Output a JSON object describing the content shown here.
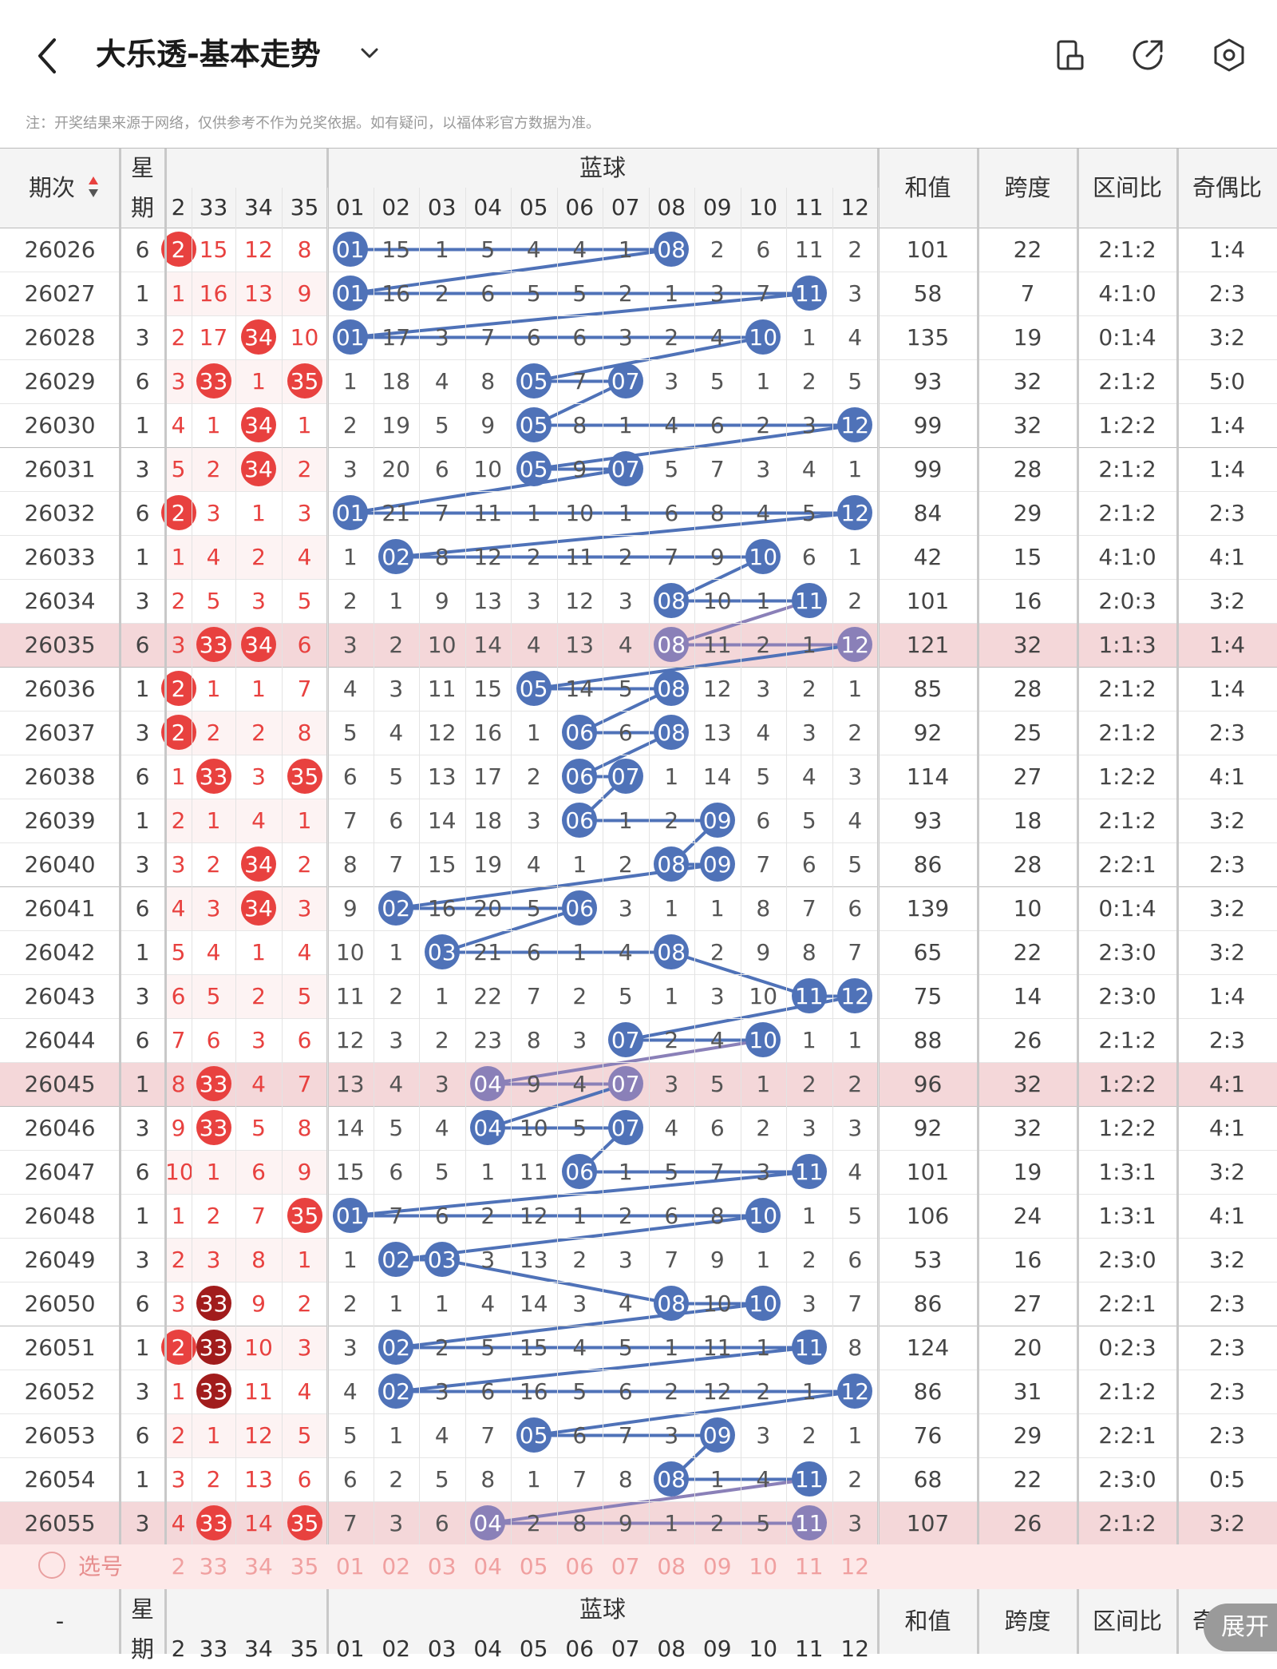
{
  "header": {
    "title": "大乐透-基本走势",
    "back_icon": "back-arrow-icon",
    "dropdown_icon": "chevron-down-icon",
    "icons": [
      "screen-rotate-icon",
      "share-icon",
      "settings-icon"
    ]
  },
  "note": "注：开奖结果来源于网络，仅供参考不作为兑奖依据。如有疑问，以福体彩官方数据为准。",
  "columns": {
    "issue": "期次",
    "week": "星期",
    "blue_group": "蓝球",
    "sum": "和值",
    "span": "跨度",
    "zone_ratio": "区间比",
    "odd_even": "奇偶比",
    "red_visible": [
      "2",
      "33",
      "34",
      "35"
    ],
    "blue": [
      "01",
      "02",
      "03",
      "04",
      "05",
      "06",
      "07",
      "08",
      "09",
      "10",
      "11",
      "12"
    ]
  },
  "colors": {
    "red": "#e8413f",
    "dark_red": "#a11c1c",
    "blue": "#4f72b8",
    "purple": "#8a80b8",
    "highlight_row": "#f4d7d9",
    "light_red_bg": "#fdeeee",
    "grid": "#bbbbbb"
  },
  "rows": [
    {
      "issue": "26026",
      "week": "6",
      "red": [
        "2",
        "15",
        "12",
        "8"
      ],
      "red_hit": [
        1,
        0,
        0,
        0
      ],
      "blue": [
        "01",
        "15",
        "1",
        "5",
        "4",
        "4",
        "1",
        "08",
        "2",
        "6",
        "11",
        "2"
      ],
      "blue_hit": [
        1,
        8
      ],
      "sum": "101",
      "span": "22",
      "zone": "2:1:2",
      "oe": "1:4",
      "hl": false
    },
    {
      "issue": "26027",
      "week": "1",
      "red": [
        "1",
        "16",
        "13",
        "9"
      ],
      "red_hit": [
        0,
        0,
        0,
        0
      ],
      "blue": [
        "01",
        "16",
        "2",
        "6",
        "5",
        "5",
        "2",
        "1",
        "3",
        "7",
        "11",
        "3"
      ],
      "blue_hit": [
        1,
        11
      ],
      "sum": "58",
      "span": "7",
      "zone": "4:1:0",
      "oe": "2:3",
      "hl": false
    },
    {
      "issue": "26028",
      "week": "3",
      "red": [
        "2",
        "17",
        "34",
        "10"
      ],
      "red_hit": [
        0,
        0,
        1,
        0
      ],
      "blue": [
        "01",
        "17",
        "3",
        "7",
        "6",
        "6",
        "3",
        "2",
        "4",
        "10",
        "1",
        "4"
      ],
      "blue_hit": [
        1,
        10
      ],
      "sum": "135",
      "span": "19",
      "zone": "0:1:4",
      "oe": "3:2",
      "hl": false
    },
    {
      "issue": "26029",
      "week": "6",
      "red": [
        "3",
        "33",
        "1",
        "35"
      ],
      "red_hit": [
        0,
        1,
        0,
        1
      ],
      "blue": [
        "1",
        "18",
        "4",
        "8",
        "05",
        "7",
        "07",
        "3",
        "5",
        "1",
        "2",
        "5"
      ],
      "blue_hit": [
        5,
        7
      ],
      "sum": "93",
      "span": "32",
      "zone": "2:1:2",
      "oe": "5:0",
      "hl": false
    },
    {
      "issue": "26030",
      "week": "1",
      "red": [
        "4",
        "1",
        "34",
        "1"
      ],
      "red_hit": [
        0,
        0,
        1,
        0
      ],
      "blue": [
        "2",
        "19",
        "5",
        "9",
        "05",
        "8",
        "1",
        "4",
        "6",
        "2",
        "3",
        "12"
      ],
      "blue_hit": [
        5,
        12
      ],
      "sum": "99",
      "span": "32",
      "zone": "1:2:2",
      "oe": "1:4",
      "hl": false
    },
    {
      "issue": "26031",
      "week": "3",
      "red": [
        "5",
        "2",
        "34",
        "2"
      ],
      "red_hit": [
        0,
        0,
        1,
        0
      ],
      "blue": [
        "3",
        "20",
        "6",
        "10",
        "05",
        "9",
        "07",
        "5",
        "7",
        "3",
        "4",
        "1"
      ],
      "blue_hit": [
        5,
        7
      ],
      "sum": "99",
      "span": "28",
      "zone": "2:1:2",
      "oe": "1:4",
      "hl": false
    },
    {
      "issue": "26032",
      "week": "6",
      "red": [
        "2",
        "3",
        "1",
        "3"
      ],
      "red_hit": [
        1,
        0,
        0,
        0
      ],
      "blue": [
        "01",
        "21",
        "7",
        "11",
        "1",
        "10",
        "1",
        "6",
        "8",
        "4",
        "5",
        "12"
      ],
      "blue_hit": [
        1,
        12
      ],
      "sum": "84",
      "span": "29",
      "zone": "2:1:2",
      "oe": "2:3",
      "hl": false
    },
    {
      "issue": "26033",
      "week": "1",
      "red": [
        "1",
        "4",
        "2",
        "4"
      ],
      "red_hit": [
        0,
        0,
        0,
        0
      ],
      "blue": [
        "1",
        "02",
        "8",
        "12",
        "2",
        "11",
        "2",
        "7",
        "9",
        "10",
        "6",
        "1"
      ],
      "blue_hit": [
        2,
        10
      ],
      "sum": "42",
      "span": "15",
      "zone": "4:1:0",
      "oe": "4:1",
      "hl": false
    },
    {
      "issue": "26034",
      "week": "3",
      "red": [
        "2",
        "5",
        "3",
        "5"
      ],
      "red_hit": [
        0,
        0,
        0,
        0
      ],
      "blue": [
        "2",
        "1",
        "9",
        "13",
        "3",
        "12",
        "3",
        "08",
        "10",
        "1",
        "11",
        "2"
      ],
      "blue_hit": [
        8,
        11
      ],
      "sum": "101",
      "span": "16",
      "zone": "2:0:3",
      "oe": "3:2",
      "hl": false
    },
    {
      "issue": "26035",
      "week": "6",
      "red": [
        "3",
        "33",
        "34",
        "6"
      ],
      "red_hit": [
        0,
        1,
        1,
        0
      ],
      "blue": [
        "3",
        "2",
        "10",
        "14",
        "4",
        "13",
        "4",
        "08",
        "11",
        "2",
        "1",
        "12"
      ],
      "blue_hit": [
        8,
        12
      ],
      "sum": "121",
      "span": "32",
      "zone": "1:1:3",
      "oe": "1:4",
      "hl": true
    },
    {
      "issue": "26036",
      "week": "1",
      "red": [
        "2",
        "1",
        "1",
        "7"
      ],
      "red_hit": [
        1,
        0,
        0,
        0
      ],
      "blue": [
        "4",
        "3",
        "11",
        "15",
        "05",
        "14",
        "5",
        "08",
        "12",
        "3",
        "2",
        "1"
      ],
      "blue_hit": [
        5,
        8
      ],
      "sum": "85",
      "span": "28",
      "zone": "2:1:2",
      "oe": "1:4",
      "hl": false
    },
    {
      "issue": "26037",
      "week": "3",
      "red": [
        "2",
        "2",
        "2",
        "8"
      ],
      "red_hit": [
        1,
        0,
        0,
        0
      ],
      "blue": [
        "5",
        "4",
        "12",
        "16",
        "1",
        "06",
        "6",
        "08",
        "13",
        "4",
        "3",
        "2"
      ],
      "blue_hit": [
        6,
        8
      ],
      "sum": "92",
      "span": "25",
      "zone": "2:1:2",
      "oe": "2:3",
      "hl": false
    },
    {
      "issue": "26038",
      "week": "6",
      "red": [
        "1",
        "33",
        "3",
        "35"
      ],
      "red_hit": [
        0,
        1,
        0,
        1
      ],
      "blue": [
        "6",
        "5",
        "13",
        "17",
        "2",
        "06",
        "07",
        "1",
        "14",
        "5",
        "4",
        "3"
      ],
      "blue_hit": [
        6,
        7
      ],
      "sum": "114",
      "span": "27",
      "zone": "1:2:2",
      "oe": "4:1",
      "hl": false
    },
    {
      "issue": "26039",
      "week": "1",
      "red": [
        "2",
        "1",
        "4",
        "1"
      ],
      "red_hit": [
        0,
        0,
        0,
        0
      ],
      "blue": [
        "7",
        "6",
        "14",
        "18",
        "3",
        "06",
        "1",
        "2",
        "09",
        "6",
        "5",
        "4"
      ],
      "blue_hit": [
        6,
        9
      ],
      "sum": "93",
      "span": "18",
      "zone": "2:1:2",
      "oe": "3:2",
      "hl": false
    },
    {
      "issue": "26040",
      "week": "3",
      "red": [
        "3",
        "2",
        "34",
        "2"
      ],
      "red_hit": [
        0,
        0,
        1,
        0
      ],
      "blue": [
        "8",
        "7",
        "15",
        "19",
        "4",
        "1",
        "2",
        "08",
        "09",
        "7",
        "6",
        "5"
      ],
      "blue_hit": [
        8,
        9
      ],
      "sum": "86",
      "span": "28",
      "zone": "2:2:1",
      "oe": "2:3",
      "hl": false
    },
    {
      "issue": "26041",
      "week": "6",
      "red": [
        "4",
        "3",
        "34",
        "3"
      ],
      "red_hit": [
        0,
        0,
        1,
        0
      ],
      "blue": [
        "9",
        "02",
        "16",
        "20",
        "5",
        "06",
        "3",
        "1",
        "1",
        "8",
        "7",
        "6"
      ],
      "blue_hit": [
        2,
        6
      ],
      "sum": "139",
      "span": "10",
      "zone": "0:1:4",
      "oe": "3:2",
      "hl": false
    },
    {
      "issue": "26042",
      "week": "1",
      "red": [
        "5",
        "4",
        "1",
        "4"
      ],
      "red_hit": [
        0,
        0,
        0,
        0
      ],
      "blue": [
        "10",
        "1",
        "03",
        "21",
        "6",
        "1",
        "4",
        "08",
        "2",
        "9",
        "8",
        "7"
      ],
      "blue_hit": [
        3,
        8
      ],
      "sum": "65",
      "span": "22",
      "zone": "2:3:0",
      "oe": "3:2",
      "hl": false
    },
    {
      "issue": "26043",
      "week": "3",
      "red": [
        "6",
        "5",
        "2",
        "5"
      ],
      "red_hit": [
        0,
        0,
        0,
        0
      ],
      "blue": [
        "11",
        "2",
        "1",
        "22",
        "7",
        "2",
        "5",
        "1",
        "3",
        "10",
        "11",
        "12"
      ],
      "blue_hit": [
        11,
        12
      ],
      "sum": "75",
      "span": "14",
      "zone": "2:3:0",
      "oe": "1:4",
      "hl": false
    },
    {
      "issue": "26044",
      "week": "6",
      "red": [
        "7",
        "6",
        "3",
        "6"
      ],
      "red_hit": [
        0,
        0,
        0,
        0
      ],
      "blue": [
        "12",
        "3",
        "2",
        "23",
        "8",
        "3",
        "07",
        "2",
        "4",
        "10",
        "1",
        "1"
      ],
      "blue_hit": [
        7,
        10
      ],
      "sum": "88",
      "span": "26",
      "zone": "2:1:2",
      "oe": "2:3",
      "hl": false
    },
    {
      "issue": "26045",
      "week": "1",
      "red": [
        "8",
        "33",
        "4",
        "7"
      ],
      "red_hit": [
        0,
        1,
        0,
        0
      ],
      "blue": [
        "13",
        "4",
        "3",
        "04",
        "9",
        "4",
        "07",
        "3",
        "5",
        "1",
        "2",
        "2"
      ],
      "blue_hit": [
        4,
        7
      ],
      "sum": "96",
      "span": "32",
      "zone": "1:2:2",
      "oe": "4:1",
      "hl": true
    },
    {
      "issue": "26046",
      "week": "3",
      "red": [
        "9",
        "33",
        "5",
        "8"
      ],
      "red_hit": [
        0,
        1,
        0,
        0
      ],
      "blue": [
        "14",
        "5",
        "4",
        "04",
        "10",
        "5",
        "07",
        "4",
        "6",
        "2",
        "3",
        "3"
      ],
      "blue_hit": [
        4,
        7
      ],
      "sum": "92",
      "span": "32",
      "zone": "1:2:2",
      "oe": "4:1",
      "hl": false
    },
    {
      "issue": "26047",
      "week": "6",
      "red": [
        "10",
        "1",
        "6",
        "9"
      ],
      "red_hit": [
        0,
        0,
        0,
        0
      ],
      "blue": [
        "15",
        "6",
        "5",
        "1",
        "11",
        "06",
        "1",
        "5",
        "7",
        "3",
        "11",
        "4"
      ],
      "blue_hit": [
        6,
        11
      ],
      "sum": "101",
      "span": "19",
      "zone": "1:3:1",
      "oe": "3:2",
      "hl": false
    },
    {
      "issue": "26048",
      "week": "1",
      "red": [
        "1",
        "2",
        "7",
        "35"
      ],
      "red_hit": [
        0,
        0,
        0,
        1
      ],
      "blue": [
        "01",
        "7",
        "6",
        "2",
        "12",
        "1",
        "2",
        "6",
        "8",
        "10",
        "1",
        "5"
      ],
      "blue_hit": [
        1,
        10
      ],
      "sum": "106",
      "span": "24",
      "zone": "1:3:1",
      "oe": "4:1",
      "hl": false
    },
    {
      "issue": "26049",
      "week": "3",
      "red": [
        "2",
        "3",
        "8",
        "1"
      ],
      "red_hit": [
        0,
        0,
        0,
        0
      ],
      "blue": [
        "1",
        "02",
        "03",
        "3",
        "13",
        "2",
        "3",
        "7",
        "9",
        "1",
        "2",
        "6"
      ],
      "blue_hit": [
        2,
        3
      ],
      "sum": "53",
      "span": "16",
      "zone": "2:3:0",
      "oe": "3:2",
      "hl": false
    },
    {
      "issue": "26050",
      "week": "6",
      "red": [
        "3",
        "33",
        "9",
        "2"
      ],
      "red_hit": [
        0,
        2,
        0,
        0
      ],
      "blue": [
        "2",
        "1",
        "1",
        "4",
        "14",
        "3",
        "4",
        "08",
        "10",
        "10",
        "3",
        "7"
      ],
      "blue_hit": [
        8,
        10
      ],
      "sum": "86",
      "span": "27",
      "zone": "2:2:1",
      "oe": "2:3",
      "hl": false
    },
    {
      "issue": "26051",
      "week": "1",
      "red": [
        "2",
        "33",
        "10",
        "3"
      ],
      "red_hit": [
        1,
        2,
        0,
        0
      ],
      "blue": [
        "3",
        "02",
        "2",
        "5",
        "15",
        "4",
        "5",
        "1",
        "11",
        "1",
        "11",
        "8"
      ],
      "blue_hit": [
        2,
        11
      ],
      "sum": "124",
      "span": "20",
      "zone": "0:2:3",
      "oe": "2:3",
      "hl": false
    },
    {
      "issue": "26052",
      "week": "3",
      "red": [
        "1",
        "33",
        "11",
        "4"
      ],
      "red_hit": [
        0,
        2,
        0,
        0
      ],
      "blue": [
        "4",
        "02",
        "3",
        "6",
        "16",
        "5",
        "6",
        "2",
        "12",
        "2",
        "1",
        "12"
      ],
      "blue_hit": [
        2,
        12
      ],
      "sum": "86",
      "span": "31",
      "zone": "2:1:2",
      "oe": "2:3",
      "hl": false
    },
    {
      "issue": "26053",
      "week": "6",
      "red": [
        "2",
        "1",
        "12",
        "5"
      ],
      "red_hit": [
        0,
        0,
        0,
        0
      ],
      "blue": [
        "5",
        "1",
        "4",
        "7",
        "05",
        "6",
        "7",
        "3",
        "09",
        "3",
        "2",
        "1"
      ],
      "blue_hit": [
        5,
        9
      ],
      "sum": "76",
      "span": "29",
      "zone": "2:2:1",
      "oe": "2:3",
      "hl": false
    },
    {
      "issue": "26054",
      "week": "1",
      "red": [
        "3",
        "2",
        "13",
        "6"
      ],
      "red_hit": [
        0,
        0,
        0,
        0
      ],
      "blue": [
        "6",
        "2",
        "5",
        "8",
        "1",
        "7",
        "8",
        "08",
        "1",
        "4",
        "11",
        "2"
      ],
      "blue_hit": [
        8,
        11
      ],
      "sum": "68",
      "span": "22",
      "zone": "2:3:0",
      "oe": "0:5",
      "hl": false
    },
    {
      "issue": "26055",
      "week": "3",
      "red": [
        "4",
        "33",
        "14",
        "35"
      ],
      "red_hit": [
        0,
        1,
        0,
        1
      ],
      "blue": [
        "7",
        "3",
        "6",
        "04",
        "2",
        "8",
        "9",
        "1",
        "2",
        "5",
        "11",
        "3"
      ],
      "blue_hit": [
        4,
        11
      ],
      "sum": "107",
      "span": "26",
      "zone": "2:1:2",
      "oe": "3:2",
      "hl": true
    }
  ],
  "select_row": {
    "label": "选号",
    "red": [
      "2",
      "33",
      "34",
      "35"
    ],
    "blue": [
      "01",
      "02",
      "03",
      "04",
      "05",
      "06",
      "07",
      "08",
      "09",
      "10",
      "11",
      "12"
    ]
  },
  "footer_header": {
    "issue": "-",
    "week": "星期",
    "blue_group": "蓝球",
    "sum": "和值",
    "span": "跨度",
    "zone_ratio": "区间比",
    "odd_even": "奇偶比",
    "red_visible": [
      "2",
      "33",
      "34",
      "35"
    ],
    "blue": [
      "01",
      "02",
      "03",
      "04",
      "05",
      "06",
      "07",
      "08",
      "09",
      "10",
      "11",
      "12"
    ]
  },
  "expand_button": "展开"
}
